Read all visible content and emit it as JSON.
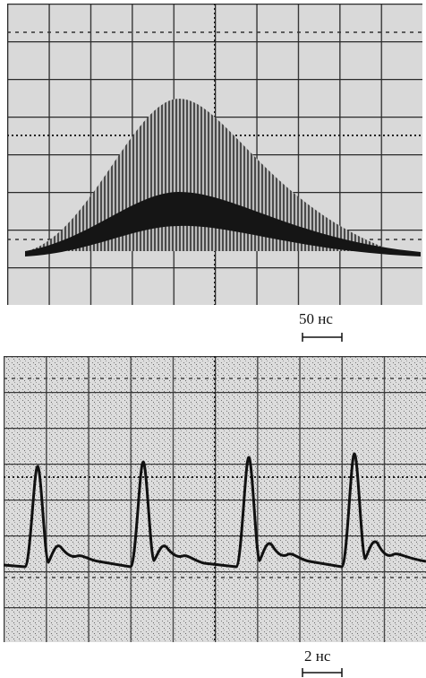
{
  "panels": [
    {
      "scale_label": "50 нс"
    },
    {
      "scale_label": "2 нс"
    }
  ]
}
